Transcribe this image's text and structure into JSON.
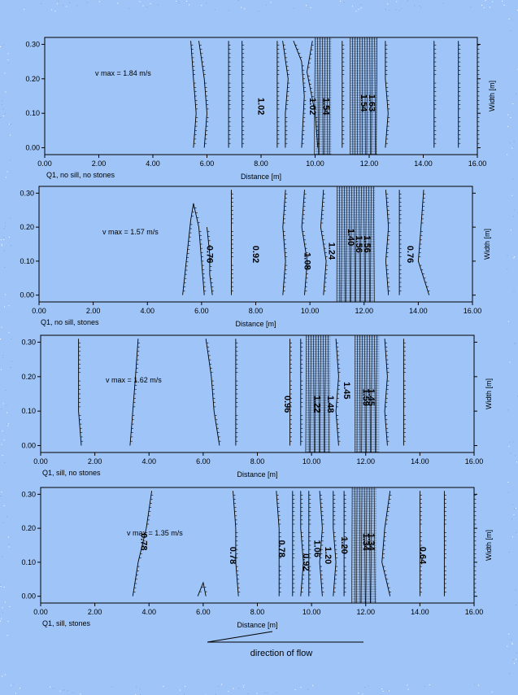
{
  "chart_data": [
    {
      "type": "contour",
      "caption": "Q1, no sill, no stones",
      "vmax_label": "v max = 1.84 m/s",
      "xlabel": "Distance [m]",
      "ylabel": "Width [m]",
      "xlim": [
        0,
        16
      ],
      "ylim": [
        -0.02,
        0.32
      ],
      "x_ticks": [
        "0.00",
        "2.00",
        "4.00",
        "6.00",
        "8.00",
        "10.00",
        "12.00",
        "14.00",
        "16.00"
      ],
      "y_ticks": [
        "0.00",
        "0.10",
        "0.20",
        "0.30"
      ],
      "contour_labels": [
        {
          "text": "1.02",
          "x": 7.9,
          "y": 0.12
        },
        {
          "text": "1.02",
          "x": 9.8,
          "y": 0.12
        },
        {
          "text": "1.54",
          "x": 10.3,
          "y": 0.12
        },
        {
          "text": "1.54",
          "x": 11.7,
          "y": 0.13
        },
        {
          "text": "1.63",
          "x": 12.0,
          "y": 0.13
        }
      ],
      "contours": [
        {
          "x": [
            5.4,
            5.5,
            5.6,
            5.5
          ],
          "y": [
            0.31,
            0.2,
            0.1,
            0.0
          ]
        },
        {
          "x": [
            5.7,
            5.9,
            6.0,
            5.9
          ],
          "y": [
            0.31,
            0.2,
            0.1,
            0.0
          ]
        },
        {
          "x": [
            6.8,
            6.8,
            6.8,
            6.8
          ],
          "y": [
            0.31,
            0.2,
            0.1,
            0.0
          ]
        },
        {
          "x": [
            7.3,
            7.3,
            7.3,
            7.3
          ],
          "y": [
            0.31,
            0.2,
            0.1,
            0.0
          ]
        },
        {
          "x": [
            8.6,
            8.6,
            8.6,
            8.6
          ],
          "y": [
            0.31,
            0.2,
            0.1,
            0.0
          ]
        },
        {
          "x": [
            8.8,
            9.0,
            8.9,
            8.9
          ],
          "y": [
            0.31,
            0.2,
            0.1,
            0.0
          ]
        },
        {
          "x": [
            9.2,
            9.5,
            9.6,
            9.5
          ],
          "y": [
            0.31,
            0.25,
            0.15,
            0.0
          ]
        },
        {
          "x": [
            9.9,
            9.7,
            10.0,
            10.1
          ],
          "y": [
            0.31,
            0.22,
            0.1,
            0.0
          ]
        },
        {
          "x": [
            11.0,
            11.0,
            11.0,
            11.0
          ],
          "y": [
            0.31,
            0.2,
            0.1,
            0.0
          ]
        },
        {
          "x": [
            12.6,
            12.6,
            12.7,
            12.6
          ],
          "y": [
            0.31,
            0.2,
            0.1,
            0.0
          ]
        },
        {
          "x": [
            14.4,
            14.4,
            14.4,
            14.4
          ],
          "y": [
            0.31,
            0.2,
            0.1,
            0.0
          ]
        },
        {
          "x": [
            15.3,
            15.3,
            15.3,
            15.3
          ],
          "y": [
            0.31,
            0.2,
            0.1,
            0.0
          ]
        },
        {
          "x": [
            16.0,
            16.0,
            16.0,
            16.0
          ],
          "y": [
            0.31,
            0.2,
            0.1,
            0.0
          ]
        }
      ],
      "dense_bands": [
        [
          10.0,
          10.6
        ],
        [
          11.3,
          12.3
        ]
      ]
    },
    {
      "type": "contour",
      "caption": "Q1, no sill, stones",
      "vmax_label": "v max = 1.57 m/s",
      "xlabel": "Distance [m]",
      "ylabel": "Width [m]",
      "xlim": [
        0,
        16
      ],
      "ylim": [
        -0.02,
        0.32
      ],
      "x_ticks": [
        "0.00",
        "2.00",
        "4.00",
        "6.00",
        "8.00",
        "10.00",
        "12.00",
        "14.00",
        "16.00"
      ],
      "y_ticks": [
        "0.00",
        "0.10",
        "0.20",
        "0.30"
      ],
      "contour_labels": [
        {
          "text": "0.76",
          "x": 6.2,
          "y": 0.12
        },
        {
          "text": "0.92",
          "x": 7.9,
          "y": 0.12
        },
        {
          "text": "1.08",
          "x": 9.8,
          "y": 0.1
        },
        {
          "text": "1.24",
          "x": 10.7,
          "y": 0.13
        },
        {
          "text": "1.40",
          "x": 11.4,
          "y": 0.17
        },
        {
          "text": "1.56",
          "x": 11.7,
          "y": 0.15
        },
        {
          "text": "1.56",
          "x": 12.0,
          "y": 0.15
        },
        {
          "text": "0.76",
          "x": 13.6,
          "y": 0.12
        }
      ],
      "contours": [
        {
          "x": [
            5.3,
            5.6,
            5.7,
            5.9,
            6.1
          ],
          "y": [
            0.0,
            0.22,
            0.27,
            0.2,
            0.0
          ]
        },
        {
          "x": [
            6.2,
            6.3,
            6.3,
            6.4
          ],
          "y": [
            0.2,
            0.12,
            0.06,
            0.0
          ]
        },
        {
          "x": [
            7.1,
            7.1,
            7.1,
            7.1
          ],
          "y": [
            0.31,
            0.2,
            0.1,
            0.0
          ]
        },
        {
          "x": [
            9.1,
            9.0,
            9.1,
            9.0
          ],
          "y": [
            0.31,
            0.2,
            0.1,
            0.0
          ]
        },
        {
          "x": [
            9.8,
            9.7,
            9.9,
            9.8
          ],
          "y": [
            0.31,
            0.2,
            0.1,
            0.0
          ]
        },
        {
          "x": [
            10.5,
            10.4,
            10.6,
            10.5
          ],
          "y": [
            0.31,
            0.2,
            0.1,
            0.0
          ]
        },
        {
          "x": [
            12.8,
            12.9,
            12.8,
            12.9
          ],
          "y": [
            0.31,
            0.2,
            0.1,
            0.0
          ]
        },
        {
          "x": [
            13.3,
            13.3,
            13.3,
            13.3
          ],
          "y": [
            0.31,
            0.2,
            0.1,
            0.0
          ]
        },
        {
          "x": [
            14.2,
            14.1,
            14.0,
            14.4
          ],
          "y": [
            0.31,
            0.2,
            0.1,
            0.0
          ]
        }
      ],
      "dense_bands": [
        [
          11.0,
          12.4
        ]
      ]
    },
    {
      "type": "contour",
      "caption": "Q1, sill, no stones",
      "vmax_label": "v max = 1.62 m/s",
      "xlabel": "Distance [m]",
      "ylabel": "Width [m]",
      "xlim": [
        0,
        16
      ],
      "ylim": [
        -0.02,
        0.32
      ],
      "x_ticks": [
        "0.00",
        "2.00",
        "4.00",
        "6.00",
        "8.00",
        "10.00",
        "12.00",
        "14.00",
        "16.00"
      ],
      "y_ticks": [
        "0.00",
        "0.10",
        "0.20",
        "0.30"
      ],
      "contour_labels": [
        {
          "text": "0.96",
          "x": 9.0,
          "y": 0.12
        },
        {
          "text": "1.22",
          "x": 10.1,
          "y": 0.12
        },
        {
          "text": "1.48",
          "x": 10.6,
          "y": 0.12
        },
        {
          "text": "1.45",
          "x": 11.2,
          "y": 0.16
        },
        {
          "text": "1.59",
          "x": 11.9,
          "y": 0.14
        },
        {
          "text": "1.45",
          "x": 12.1,
          "y": 0.14
        }
      ],
      "contours": [
        {
          "x": [
            1.4,
            1.4,
            1.4,
            1.5
          ],
          "y": [
            0.31,
            0.2,
            0.1,
            0.0
          ]
        },
        {
          "x": [
            3.6,
            3.5,
            3.4,
            3.3
          ],
          "y": [
            0.31,
            0.2,
            0.1,
            0.0
          ]
        },
        {
          "x": [
            6.1,
            6.3,
            6.4,
            6.6
          ],
          "y": [
            0.31,
            0.2,
            0.1,
            0.0
          ]
        },
        {
          "x": [
            7.2,
            7.2,
            7.2,
            7.2
          ],
          "y": [
            0.31,
            0.2,
            0.1,
            0.0
          ]
        },
        {
          "x": [
            9.2,
            9.2,
            9.2,
            9.2
          ],
          "y": [
            0.31,
            0.2,
            0.1,
            0.0
          ]
        },
        {
          "x": [
            9.6,
            9.6,
            9.6,
            9.6
          ],
          "y": [
            0.31,
            0.2,
            0.1,
            0.0
          ]
        },
        {
          "x": [
            10.9,
            11.0,
            10.9,
            11.0
          ],
          "y": [
            0.31,
            0.2,
            0.1,
            0.0
          ]
        },
        {
          "x": [
            12.7,
            12.8,
            12.7,
            12.8
          ],
          "y": [
            0.31,
            0.2,
            0.1,
            0.0
          ]
        },
        {
          "x": [
            13.4,
            13.4,
            13.4,
            13.4
          ],
          "y": [
            0.31,
            0.2,
            0.1,
            0.0
          ]
        }
      ],
      "dense_bands": [
        [
          9.8,
          10.7
        ],
        [
          11.6,
          12.5
        ]
      ]
    },
    {
      "type": "contour",
      "caption": "Q1, sill, stones",
      "vmax_label": "v max = 1.35 m/s",
      "xlabel": "Distance [m]",
      "ylabel": "Width [m]",
      "xlim": [
        0,
        16
      ],
      "ylim": [
        -0.02,
        0.32
      ],
      "x_ticks": [
        "0.00",
        "2.00",
        "4.00",
        "6.00",
        "8.00",
        "10.00",
        "12.00",
        "14.00",
        "16.00"
      ],
      "y_ticks": [
        "0.00",
        "0.10",
        "0.20",
        "0.30"
      ],
      "contour_labels": [
        {
          "text": "0.78",
          "x": 3.7,
          "y": 0.16
        },
        {
          "text": "0.78",
          "x": 7.0,
          "y": 0.12
        },
        {
          "text": "0.78",
          "x": 8.8,
          "y": 0.14
        },
        {
          "text": "0.92",
          "x": 9.7,
          "y": 0.1
        },
        {
          "text": "1.06",
          "x": 10.1,
          "y": 0.14
        },
        {
          "text": "1.20",
          "x": 10.5,
          "y": 0.12
        },
        {
          "text": "1.20",
          "x": 11.1,
          "y": 0.15
        },
        {
          "text": "1.34",
          "x": 11.9,
          "y": 0.16
        },
        {
          "text": "1.34",
          "x": 12.1,
          "y": 0.16
        },
        {
          "text": "0.64",
          "x": 14.0,
          "y": 0.12
        }
      ],
      "contours": [
        {
          "x": [
            4.1,
            3.9,
            3.6,
            3.4
          ],
          "y": [
            0.31,
            0.2,
            0.1,
            0.0
          ]
        },
        {
          "x": [
            5.8,
            6.0,
            6.1
          ],
          "y": [
            0.0,
            0.04,
            0.0
          ]
        },
        {
          "x": [
            7.1,
            7.2,
            7.2,
            7.3
          ],
          "y": [
            0.31,
            0.2,
            0.1,
            0.0
          ]
        },
        {
          "x": [
            8.7,
            8.8,
            8.8,
            8.8
          ],
          "y": [
            0.31,
            0.2,
            0.1,
            0.0
          ]
        },
        {
          "x": [
            9.3,
            9.3,
            9.3,
            9.3
          ],
          "y": [
            0.31,
            0.2,
            0.1,
            0.0
          ]
        },
        {
          "x": [
            9.6,
            9.6,
            9.7,
            9.6
          ],
          "y": [
            0.31,
            0.2,
            0.1,
            0.0
          ]
        },
        {
          "x": [
            9.9,
            9.9,
            9.9,
            9.9
          ],
          "y": [
            0.31,
            0.2,
            0.1,
            0.0
          ]
        },
        {
          "x": [
            10.3,
            10.4,
            10.3,
            10.4
          ],
          "y": [
            0.31,
            0.2,
            0.1,
            0.0
          ]
        },
        {
          "x": [
            10.8,
            10.8,
            10.9,
            10.8
          ],
          "y": [
            0.31,
            0.2,
            0.1,
            0.0
          ]
        },
        {
          "x": [
            11.2,
            11.2,
            11.2,
            11.2
          ],
          "y": [
            0.31,
            0.2,
            0.1,
            0.0
          ]
        },
        {
          "x": [
            12.9,
            12.7,
            12.6,
            12.9
          ],
          "y": [
            0.31,
            0.2,
            0.1,
            0.0
          ]
        },
        {
          "x": [
            14.0,
            14.0,
            14.0,
            14.0
          ],
          "y": [
            0.31,
            0.2,
            0.1,
            0.0
          ]
        },
        {
          "x": [
            14.9,
            14.9,
            14.9,
            14.9
          ],
          "y": [
            0.31,
            0.2,
            0.1,
            0.0
          ]
        },
        {
          "x": [
            16.0,
            16.0,
            16.0,
            16.0
          ],
          "y": [
            0.31,
            0.2,
            0.1,
            0.0
          ]
        }
      ],
      "dense_bands": [
        [
          11.5,
          12.4
        ]
      ]
    }
  ],
  "footer": {
    "direction_label": "direction of flow"
  },
  "colors": {
    "background": "#9fc5f8",
    "ink": "#000000"
  }
}
